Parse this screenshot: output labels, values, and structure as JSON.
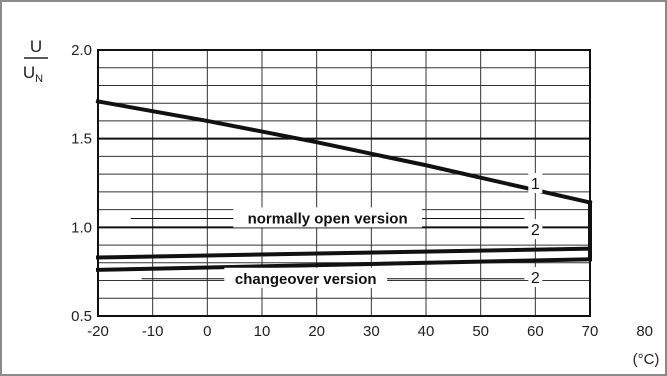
{
  "chart_data": {
    "type": "line",
    "title": "",
    "xlabel": "",
    "x_unit": "(°C)",
    "ylabel_numerator": "U",
    "ylabel_denominator": "U",
    "ylabel_denominator_subscript": "N",
    "xlim": [
      -20,
      80
    ],
    "ylim": [
      0.5,
      2.0
    ],
    "x_ticks": [
      -20,
      -10,
      0,
      10,
      20,
      30,
      40,
      50,
      60,
      70,
      80
    ],
    "x_tick_labels": [
      "-20",
      "-10",
      "0",
      "10",
      "20",
      "30",
      "40",
      "50",
      "60",
      "70",
      "80"
    ],
    "y_ticks": [
      0.5,
      1.0,
      1.5,
      2.0
    ],
    "y_tick_labels": [
      "0.5",
      "1.0",
      "1.5",
      "2.0"
    ],
    "x_grid_step": 10,
    "y_grid_step": 0.1,
    "y_major_grid_step": 0.5,
    "grid": true,
    "series": [
      {
        "label": "1",
        "x": [
          -20,
          0,
          20,
          40,
          60,
          70
        ],
        "y": [
          1.71,
          1.6,
          1.48,
          1.35,
          1.21,
          1.14
        ]
      },
      {
        "label": "2",
        "x": [
          -20,
          70
        ],
        "y": [
          0.83,
          0.88
        ]
      },
      {
        "label": "2",
        "x": [
          -20,
          70
        ],
        "y": [
          0.76,
          0.82
        ]
      },
      {
        "label": "",
        "x": [
          70,
          70
        ],
        "y": [
          0.82,
          1.14
        ]
      }
    ],
    "annotations": [
      {
        "id": "normally-open",
        "text": "normally open version",
        "x": 22,
        "y": 1.05
      },
      {
        "id": "changeover",
        "text": "changeover version",
        "x": 18,
        "y": 0.71
      },
      {
        "id": "label-1",
        "text": "1",
        "x": 60,
        "y": 1.25
      },
      {
        "id": "label-2a",
        "text": "2",
        "x": 60,
        "y": 0.99
      },
      {
        "id": "label-2b",
        "text": "2",
        "x": 60,
        "y": 0.72
      }
    ],
    "annotation_leaders": [
      {
        "id": "normally-open",
        "x1": -14,
        "x2": 58,
        "y": 1.05,
        "gap_from": 8,
        "gap_to": 38
      },
      {
        "id": "changeover",
        "x1": -12,
        "x2": 58,
        "y": 0.71,
        "gap_from": 4,
        "gap_to": 31
      }
    ]
  }
}
